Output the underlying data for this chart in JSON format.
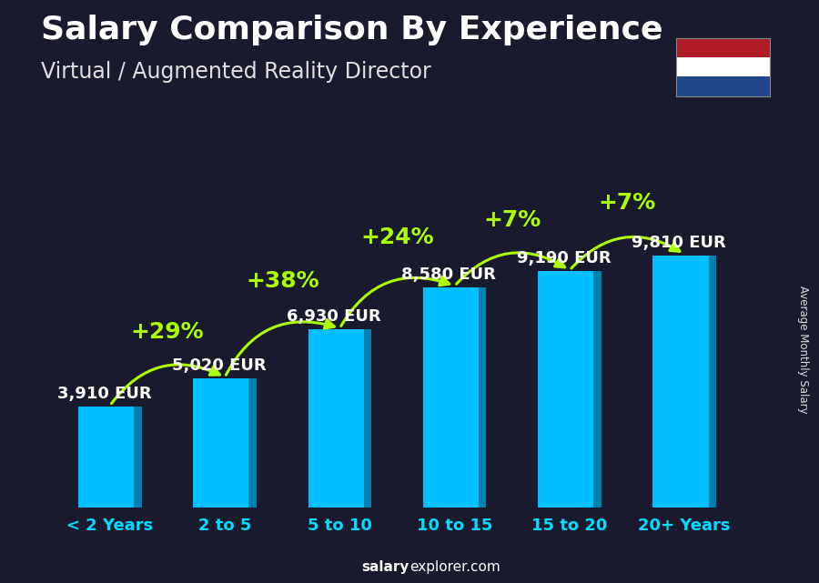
{
  "title": "Salary Comparison By Experience",
  "subtitle": "Virtual / Augmented Reality Director",
  "categories": [
    "< 2 Years",
    "2 to 5",
    "5 to 10",
    "10 to 15",
    "15 to 20",
    "20+ Years"
  ],
  "values": [
    3910,
    5020,
    6930,
    8580,
    9190,
    9810
  ],
  "value_labels": [
    "3,910 EUR",
    "5,020 EUR",
    "6,930 EUR",
    "8,580 EUR",
    "9,190 EUR",
    "9,810 EUR"
  ],
  "pct_changes": [
    "+29%",
    "+38%",
    "+24%",
    "+7%",
    "+7%"
  ],
  "bar_color_face": "#00BFFF",
  "bar_color_shadow": "#0080AA",
  "bg_color": "#1a1a2e",
  "title_color": "#ffffff",
  "subtitle_color": "#e0e0e0",
  "value_label_color": "#ffffff",
  "pct_color": "#aaff00",
  "xticklabel_color": "#00DDFF",
  "watermark_bold": "salary",
  "watermark_rest": "explorer.com",
  "side_label": "Average Monthly Salary",
  "title_fontsize": 26,
  "subtitle_fontsize": 17,
  "value_label_fontsize": 13,
  "pct_fontsize": 18,
  "xticklabel_fontsize": 13,
  "watermark_fontsize": 11,
  "ylim": [
    0,
    12500
  ],
  "bar_width": 0.55,
  "flag_colors": [
    "#AE1C28",
    "#FFFFFF",
    "#21468B"
  ]
}
